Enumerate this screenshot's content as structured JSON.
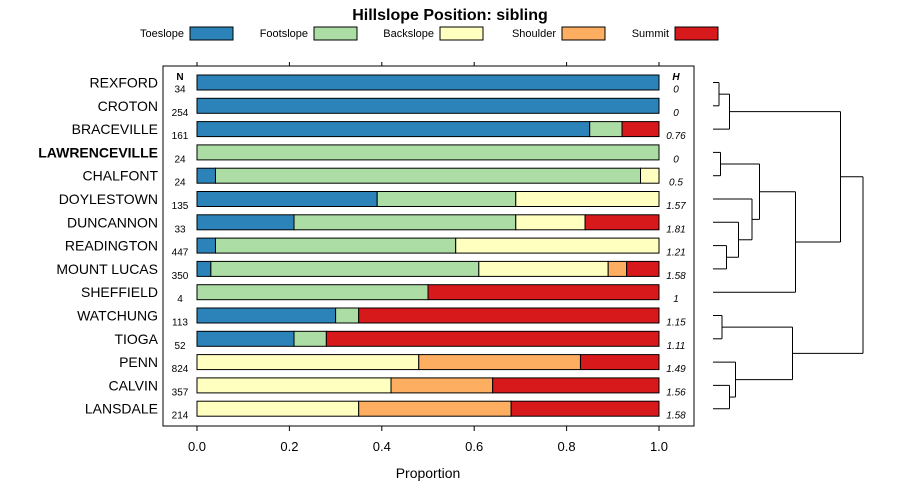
{
  "chart_data": {
    "type": "bar",
    "orientation": "horizontal",
    "stacked": true,
    "title": "Hillslope Position: sibling",
    "xlabel": "Proportion",
    "ylabel": "",
    "xlim": [
      0,
      1
    ],
    "xticks": [
      0.0,
      0.2,
      0.4,
      0.6,
      0.8,
      1.0
    ],
    "xtick_labels": [
      "0.0",
      "0.2",
      "0.4",
      "0.6",
      "0.8",
      "1.0"
    ],
    "n_header": "N",
    "h_header": "H",
    "legend_position": "top",
    "highlight_category": "LAWRENCEVILLE",
    "series_names": [
      "Toeslope",
      "Footslope",
      "Backslope",
      "Shoulder",
      "Summit"
    ],
    "colors": {
      "Toeslope": "#2b83ba",
      "Footslope": "#abdda4",
      "Backslope": "#ffffbf",
      "Shoulder": "#fdae61",
      "Summit": "#d7191c"
    },
    "categories": [
      "REXFORD",
      "CROTON",
      "BRACEVILLE",
      "LAWRENCEVILLE",
      "CHALFONT",
      "DOYLESTOWN",
      "DUNCANNON",
      "READINGTON",
      "MOUNT LUCAS",
      "SHEFFIELD",
      "WATCHUNG",
      "TIOGA",
      "PENN",
      "CALVIN",
      "LANSDALE"
    ],
    "n": [
      "34",
      "254",
      "161",
      "24",
      "24",
      "135",
      "33",
      "447",
      "350",
      "4",
      "113",
      "52",
      "824",
      "357",
      "214"
    ],
    "h": [
      "0",
      "0",
      "0.76",
      "0",
      "0.5",
      "1.57",
      "1.81",
      "1.21",
      "1.58",
      "1",
      "1.15",
      "1.11",
      "1.49",
      "1.56",
      "1.58"
    ],
    "series": [
      {
        "name": "Toeslope",
        "values": [
          1.0,
          1.0,
          0.85,
          0.0,
          0.04,
          0.39,
          0.21,
          0.04,
          0.03,
          0.0,
          0.3,
          0.21,
          0.0,
          0.0,
          0.0
        ]
      },
      {
        "name": "Footslope",
        "values": [
          0.0,
          0.0,
          0.07,
          1.0,
          0.92,
          0.3,
          0.48,
          0.52,
          0.58,
          0.5,
          0.05,
          0.07,
          0.0,
          0.0,
          0.0
        ]
      },
      {
        "name": "Backslope",
        "values": [
          0.0,
          0.0,
          0.0,
          0.0,
          0.04,
          0.31,
          0.15,
          0.44,
          0.28,
          0.0,
          0.0,
          0.0,
          0.48,
          0.42,
          0.35
        ]
      },
      {
        "name": "Shoulder",
        "values": [
          0.0,
          0.0,
          0.0,
          0.0,
          0.0,
          0.0,
          0.0,
          0.0,
          0.04,
          0.0,
          0.0,
          0.0,
          0.35,
          0.22,
          0.33
        ]
      },
      {
        "name": "Summit",
        "values": [
          0.0,
          0.0,
          0.08,
          0.0,
          0.0,
          0.0,
          0.16,
          0.0,
          0.07,
          0.5,
          0.65,
          0.72,
          0.17,
          0.36,
          0.32
        ]
      }
    ],
    "dendrogram": {
      "heights": [
        0,
        0.1,
        0.2,
        0.3,
        0.4,
        0.5,
        0.6,
        0.7,
        0.8,
        0.9,
        1.0
      ],
      "merges": [
        {
          "a": "REXFORD",
          "b": "CROTON",
          "height": 0.04
        },
        {
          "a": "N1",
          "b": "BRACEVILLE",
          "height": 0.11,
          "id": "N1b"
        },
        {
          "a": "LAWRENCEVILLE",
          "b": "CHALFONT",
          "height": 0.05,
          "id": "N2"
        },
        {
          "a": "READINGTON",
          "b": "MOUNT LUCAS",
          "height": 0.09,
          "id": "N3"
        },
        {
          "a": "DUNCANNON",
          "b": "N3",
          "height": 0.17,
          "id": "N4"
        },
        {
          "a": "DOYLESTOWN",
          "b": "N4",
          "height": 0.26,
          "id": "N5"
        },
        {
          "a": "N2",
          "b": "N5",
          "height": 0.31,
          "id": "N6"
        },
        {
          "a": "N6",
          "b": "SHEFFIELD",
          "height": 0.55,
          "id": "N7"
        },
        {
          "a": "N1b",
          "b": "N7",
          "height": 0.85,
          "id": "N8"
        },
        {
          "a": "WATCHUNG",
          "b": "TIOGA",
          "height": 0.06,
          "id": "N9"
        },
        {
          "a": "CALVIN",
          "b": "LANSDALE",
          "height": 0.11,
          "id": "N10"
        },
        {
          "a": "PENN",
          "b": "N10",
          "height": 0.15,
          "id": "N11"
        },
        {
          "a": "N9",
          "b": "N11",
          "height": 0.53,
          "id": "N12"
        },
        {
          "a": "N8",
          "b": "N12",
          "height": 1.0,
          "id": "N13"
        }
      ]
    }
  }
}
